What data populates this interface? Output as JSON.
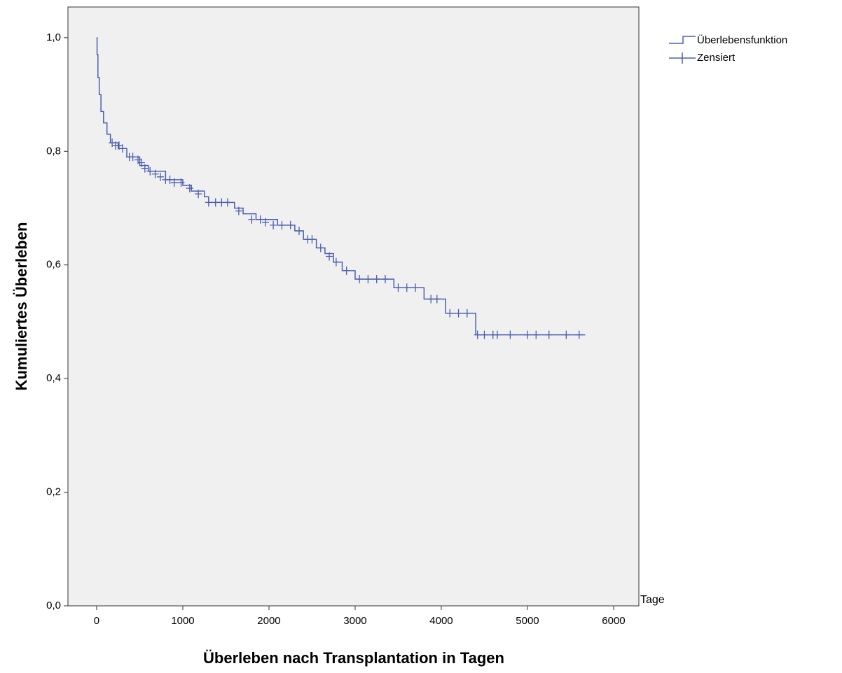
{
  "chart_data": {
    "type": "step",
    "x_label": "Überleben nach Transplantation in Tagen",
    "y_label": "Kumuliertes Überleben",
    "x_unit": "Tage",
    "xlim": [
      -333,
      6293
    ],
    "ylim": [
      0,
      1.054
    ],
    "xticks": [
      0,
      1000,
      2000,
      3000,
      4000,
      5000,
      6000
    ],
    "yticks": [
      {
        "value": 0,
        "label": "0,0"
      },
      {
        "value": 0.2,
        "label": "0,2"
      },
      {
        "value": 0.4,
        "label": "0,4"
      },
      {
        "value": 0.6,
        "label": "0,6"
      },
      {
        "value": 0.8,
        "label": "0,8"
      },
      {
        "value": 1.0,
        "label": "1,0"
      }
    ],
    "background": "#f0f0f0",
    "series": [
      {
        "name": "Überlebensfunktion",
        "color": "#4a5fb0",
        "draw": "step",
        "x": [
          0,
          5,
          15,
          30,
          50,
          80,
          120,
          160,
          250,
          350,
          500,
          600,
          800,
          1000,
          1100,
          1250,
          1300,
          1600,
          1700,
          1850,
          2100,
          2300,
          2400,
          2550,
          2650,
          2750,
          2850,
          3000,
          3450,
          3800,
          4050,
          4400,
          5670
        ],
        "values": [
          1.0,
          0.97,
          0.93,
          0.9,
          0.87,
          0.85,
          0.83,
          0.815,
          0.805,
          0.79,
          0.775,
          0.765,
          0.75,
          0.74,
          0.73,
          0.72,
          0.71,
          0.7,
          0.69,
          0.68,
          0.67,
          0.66,
          0.645,
          0.63,
          0.62,
          0.605,
          0.59,
          0.575,
          0.56,
          0.54,
          0.515,
          0.477,
          0.477
        ]
      },
      {
        "name": "Zensiert",
        "color": "#4a5fb0",
        "draw": "plus",
        "x": [
          180,
          220,
          260,
          300,
          380,
          420,
          480,
          520,
          560,
          620,
          680,
          740,
          800,
          850,
          900,
          980,
          1080,
          1180,
          1300,
          1380,
          1450,
          1520,
          1650,
          1800,
          1900,
          1960,
          2050,
          2150,
          2250,
          2350,
          2450,
          2500,
          2600,
          2700,
          2780,
          2900,
          3050,
          3150,
          3250,
          3350,
          3500,
          3600,
          3700,
          3880,
          3950,
          4100,
          4200,
          4300,
          4420,
          4500,
          4600,
          4650,
          4800,
          5000,
          5100,
          5250,
          5450,
          5600
        ],
        "values": [
          0.815,
          0.81,
          0.81,
          0.805,
          0.79,
          0.79,
          0.785,
          0.78,
          0.77,
          0.765,
          0.76,
          0.755,
          0.75,
          0.75,
          0.745,
          0.745,
          0.735,
          0.725,
          0.71,
          0.71,
          0.71,
          0.71,
          0.695,
          0.68,
          0.68,
          0.675,
          0.67,
          0.67,
          0.67,
          0.66,
          0.645,
          0.645,
          0.63,
          0.615,
          0.605,
          0.59,
          0.575,
          0.575,
          0.575,
          0.575,
          0.56,
          0.56,
          0.56,
          0.54,
          0.54,
          0.515,
          0.515,
          0.515,
          0.477,
          0.477,
          0.477,
          0.477,
          0.477,
          0.477,
          0.477,
          0.477,
          0.477,
          0.477
        ]
      }
    ]
  }
}
